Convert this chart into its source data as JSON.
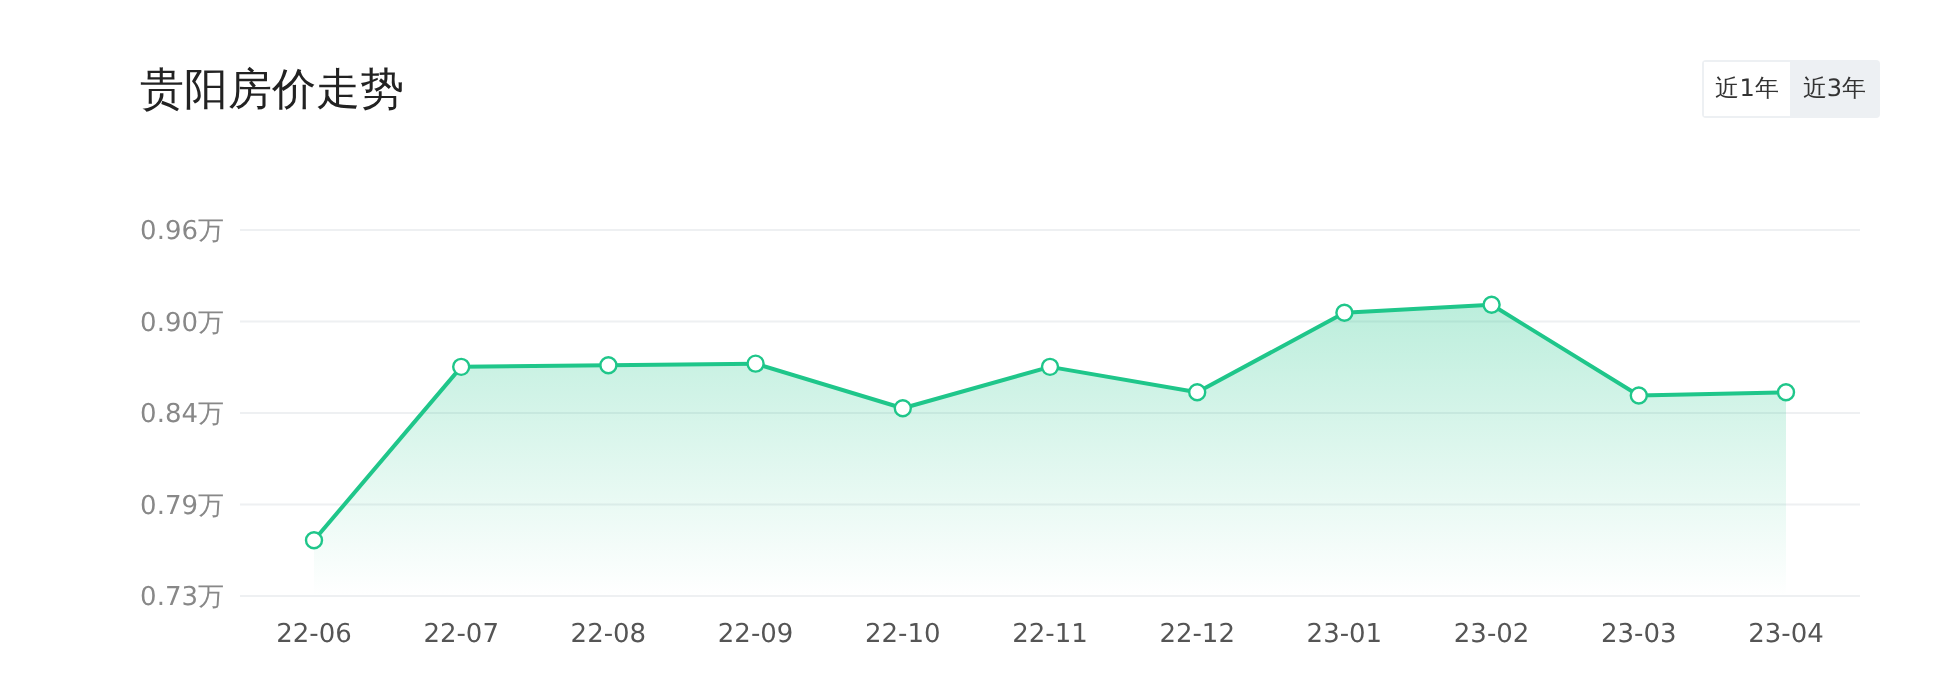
{
  "chart_data": {
    "type": "area",
    "title": "贵阳房价走势",
    "annotations": [
      "近1年",
      "近3年"
    ],
    "categories": [
      "22-06",
      "22-07",
      "22-08",
      "22-09",
      "22-10",
      "22-11",
      "22-12",
      "23-01",
      "23-02",
      "23-03",
      "23-04"
    ],
    "series": [
      {
        "color": "#1fc68a",
        "values": [
          0.765,
          0.874,
          0.875,
          0.876,
          0.848,
          0.874,
          0.858,
          0.908,
          0.913,
          0.856,
          0.858
        ]
      }
    ],
    "ylim": [
      0.73,
      0.96
    ],
    "yticks": [
      {
        "value": 0.73,
        "label": "0.73万"
      },
      {
        "value": 0.7875,
        "label": "0.79万"
      },
      {
        "value": 0.845,
        "label": "0.84万"
      },
      {
        "value": 0.9025,
        "label": "0.90万"
      },
      {
        "value": 0.96,
        "label": "0.96万"
      }
    ],
    "grid": "y",
    "marker": "circle",
    "line_style": "solid",
    "legend": false
  }
}
